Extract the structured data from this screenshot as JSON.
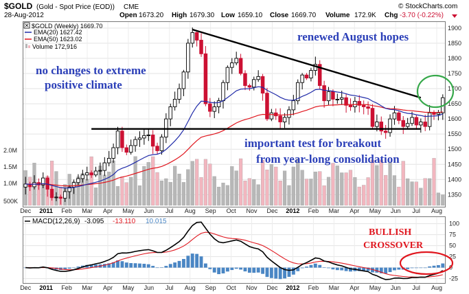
{
  "header": {
    "symbol": "$GOLD",
    "name": "(Gold - Spot Price (EOD))",
    "exchange": "CME",
    "date": "28-Aug-2012",
    "brand": "© StockCharts.com",
    "open_label": "Open",
    "open": "1673.20",
    "high_label": "High",
    "high": "1679.30",
    "low_label": "Low",
    "low": "1659.10",
    "close_label": "Close",
    "close": "1669.70",
    "volume_label": "Volume",
    "volume": "172.9K",
    "chg_label": "Chg",
    "chg": "-3.70 (-0.22%)"
  },
  "legend": {
    "title": "$GOLD (Weekly) 1669.70",
    "ema20": "EMA(20) 1627.42",
    "ema50": "EMA(50) 1623.02",
    "volume": "Volume 172,916"
  },
  "colors": {
    "up": "#000000",
    "down": "#cc1133",
    "ema20": "#1f2aa8",
    "ema50": "#e0161e",
    "volume_up": "#b7b7b7",
    "volume_down": "#f2b6bf",
    "macd_line": "#000000",
    "signal_line": "#e0161e",
    "histogram": "#4a86c4",
    "annotation_blue": "#2b3fb8",
    "annotation_red": "#e0161e",
    "circle": "#36a84a"
  },
  "annotations": {
    "a1_line1": "no changes to extreme",
    "a1_line2": "positive climate",
    "a2": "renewed August hopes",
    "a3_line1": "important test for breakout",
    "a3_line2": "from year-long consolidation",
    "a4_line1": "BULLISH",
    "a4_line2": "CROSSOVER"
  },
  "macd_legend": {
    "prefix": "MACD(12,26,9)",
    "macd": "-3.095",
    "signal": "-13.110",
    "hist": "10.015"
  },
  "chart_data": {
    "type": "candlestick",
    "timeframe": "weekly",
    "x_start": "2010-12-03",
    "x_labels": [
      "Dec",
      "2011",
      "Feb",
      "Mar",
      "Apr",
      "May",
      "Jun",
      "Jul",
      "Aug",
      "Sep",
      "Oct",
      "Nov",
      "Dec",
      "2012",
      "Feb",
      "Mar",
      "Apr",
      "May",
      "Jun",
      "Jul",
      "Aug"
    ],
    "price_ticks": [
      1350,
      1400,
      1450,
      1500,
      1550,
      1600,
      1650,
      1700,
      1750,
      1800,
      1850,
      1900
    ],
    "price_range": [
      1310,
      1920
    ],
    "volume_ticks": [
      "500K",
      "1.0M",
      "1.5M",
      "2.0M"
    ],
    "macd_ticks": [
      -25,
      0,
      25,
      50,
      75,
      100
    ],
    "macd_range": [
      -35,
      115
    ],
    "closes": [
      1385,
      1376,
      1390,
      1382,
      1405,
      1368,
      1340,
      1342,
      1338,
      1360,
      1375,
      1390,
      1403,
      1415,
      1422,
      1415,
      1428,
      1430,
      1455,
      1470,
      1505,
      1560,
      1505,
      1490,
      1512,
      1532,
      1537,
      1545,
      1547,
      1510,
      1495,
      1540,
      1600,
      1640,
      1665,
      1700,
      1755,
      1850,
      1885,
      1860,
      1815,
      1650,
      1625,
      1640,
      1660,
      1720,
      1770,
      1785,
      1800,
      1750,
      1710,
      1705,
      1730,
      1740,
      1685,
      1600,
      1620,
      1610,
      1590,
      1605,
      1630,
      1660,
      1720,
      1745,
      1735,
      1760,
      1780,
      1710,
      1660,
      1690,
      1665,
      1665,
      1670,
      1645,
      1640,
      1658,
      1645,
      1640,
      1635,
      1575,
      1590,
      1560,
      1555,
      1600,
      1620,
      1595,
      1575,
      1585,
      1605,
      1580,
      1590,
      1575,
      1620,
      1615,
      1620,
      1670
    ],
    "trendline_resistance": [
      [
        "2011-08-26",
        1895
      ],
      [
        "2012-08-24",
        1670
      ]
    ],
    "trendline_support": [
      [
        "2011-03-18",
        1567
      ],
      [
        "2012-08-24",
        1567
      ]
    ],
    "ema20_end": 1627.42,
    "ema50_end": 1623.02,
    "macd_end": -3.095,
    "signal_end": -13.11,
    "hist_end": 10.015
  }
}
